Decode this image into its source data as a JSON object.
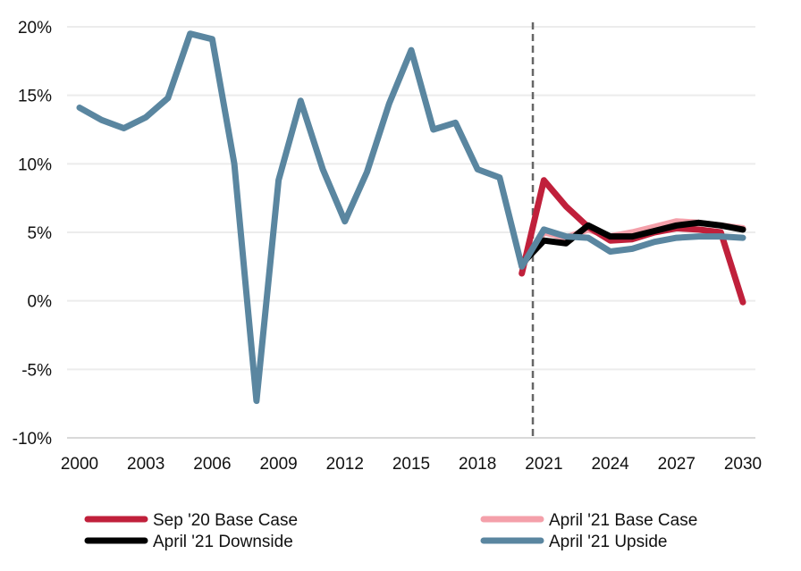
{
  "chart_data": {
    "type": "line",
    "title": "",
    "xlabel": "",
    "ylabel": "",
    "ylim": [
      -10,
      20
    ],
    "xlim": [
      2000,
      2030
    ],
    "y_ticks": [
      20,
      15,
      10,
      5,
      0,
      -5,
      -10
    ],
    "y_tick_labels": [
      "20%",
      "15%",
      "10%",
      "5%",
      "0%",
      "-5%",
      "-10%"
    ],
    "x_ticks": [
      2000,
      2003,
      2006,
      2009,
      2012,
      2015,
      2018,
      2021,
      2024,
      2027,
      2030
    ],
    "x_tick_labels": [
      "2000",
      "2003",
      "2006",
      "2009",
      "2012",
      "2015",
      "2018",
      "2021",
      "2024",
      "2027",
      "2030"
    ],
    "grid": "horizontal",
    "legend_position": "bottom",
    "forecast_marker_x": 2020.5,
    "series": [
      {
        "name": "April '21 Base Case",
        "color": "#f4a0aa",
        "x": [
          2020,
          2021,
          2022,
          2023,
          2024,
          2025,
          2026,
          2027,
          2028,
          2029,
          2030
        ],
        "y": [
          2.5,
          5.0,
          4.6,
          5.2,
          4.7,
          5.0,
          5.4,
          5.8,
          5.7,
          5.5,
          5.3
        ]
      },
      {
        "name": "Sep '20 Base Case",
        "color": "#c0203b",
        "x": [
          2020,
          2021,
          2022,
          2023,
          2024,
          2025,
          2026,
          2027,
          2028,
          2029,
          2030
        ],
        "y": [
          2.0,
          8.8,
          6.9,
          5.4,
          4.4,
          4.5,
          5.0,
          5.3,
          5.2,
          5.0,
          -0.1
        ]
      },
      {
        "name": "April '21 Downside",
        "color": "#000000",
        "x": [
          2020,
          2021,
          2022,
          2023,
          2024,
          2025,
          2026,
          2027,
          2028,
          2029,
          2030
        ],
        "y": [
          2.7,
          4.4,
          4.2,
          5.5,
          4.7,
          4.7,
          5.1,
          5.5,
          5.7,
          5.5,
          5.2
        ]
      },
      {
        "name": "April '21 Upside",
        "color": "#5a86a0",
        "x": [
          2000,
          2001,
          2002,
          2003,
          2004,
          2005,
          2006,
          2007,
          2008,
          2009,
          2010,
          2011,
          2012,
          2013,
          2014,
          2015,
          2016,
          2017,
          2018,
          2019,
          2020,
          2021,
          2022,
          2023,
          2024,
          2025,
          2026,
          2027,
          2028,
          2029,
          2030
        ],
        "y": [
          14.1,
          13.2,
          12.6,
          13.4,
          14.8,
          19.5,
          19.1,
          10.0,
          -7.3,
          8.8,
          14.6,
          9.6,
          5.8,
          9.4,
          14.4,
          18.3,
          12.5,
          13.0,
          9.6,
          9.0,
          2.5,
          5.2,
          4.7,
          4.6,
          3.6,
          3.8,
          4.3,
          4.6,
          4.7,
          4.7,
          4.6
        ]
      }
    ],
    "legend": [
      {
        "label": "Sep '20 Base Case",
        "color": "#c0203b"
      },
      {
        "label": "April '21 Base Case",
        "color": "#f4a0aa"
      },
      {
        "label": "April '21 Downside",
        "color": "#000000"
      },
      {
        "label": "April '21 Upside",
        "color": "#5a86a0"
      }
    ]
  }
}
